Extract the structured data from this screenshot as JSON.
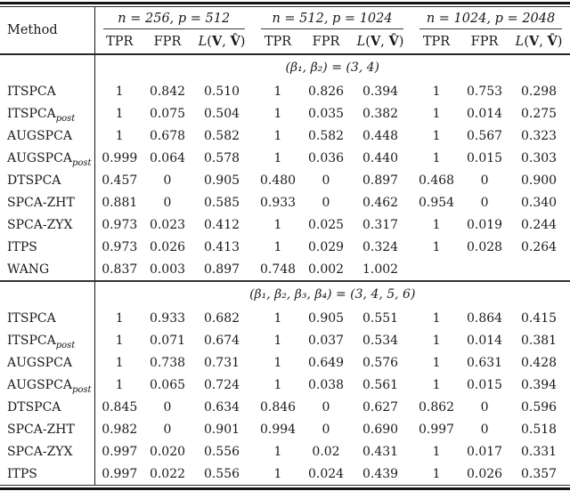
{
  "table": {
    "method_label": "Method",
    "groups": [
      {
        "label": "n = 256, p = 512"
      },
      {
        "label": "n = 512, p = 1024"
      },
      {
        "label": "n = 1024, p = 2048"
      }
    ],
    "sub_columns": {
      "tpr": "TPR",
      "fpr": "FPR",
      "loss": {
        "func": "L",
        "open": "(",
        "v": "V",
        "comma": ", ",
        "vhat": "V̂",
        "close": ")"
      }
    },
    "sections": [
      {
        "header": "(β₁, β₂) = (3, 4)",
        "rows": [
          {
            "method": "ITSPCA",
            "subscript": "",
            "values": [
              "1",
              "0.842",
              "0.510",
              "1",
              "0.826",
              "0.394",
              "1",
              "0.753",
              "0.298"
            ]
          },
          {
            "method": "ITSPCA",
            "subscript": "post",
            "values": [
              "1",
              "0.075",
              "0.504",
              "1",
              "0.035",
              "0.382",
              "1",
              "0.014",
              "0.275"
            ]
          },
          {
            "method": "AUGSPCA",
            "subscript": "",
            "values": [
              "1",
              "0.678",
              "0.582",
              "1",
              "0.582",
              "0.448",
              "1",
              "0.567",
              "0.323"
            ]
          },
          {
            "method": "AUGSPCA",
            "subscript": "post",
            "values": [
              "0.999",
              "0.064",
              "0.578",
              "1",
              "0.036",
              "0.440",
              "1",
              "0.015",
              "0.303"
            ]
          },
          {
            "method": "DTSPCA",
            "subscript": "",
            "values": [
              "0.457",
              "0",
              "0.905",
              "0.480",
              "0",
              "0.897",
              "0.468",
              "0",
              "0.900"
            ]
          },
          {
            "method": "SPCA-ZHT",
            "subscript": "",
            "values": [
              "0.881",
              "0",
              "0.585",
              "0.933",
              "0",
              "0.462",
              "0.954",
              "0",
              "0.340"
            ]
          },
          {
            "method": "SPCA-ZYX",
            "subscript": "",
            "values": [
              "0.973",
              "0.023",
              "0.412",
              "1",
              "0.025",
              "0.317",
              "1",
              "0.019",
              "0.244"
            ]
          },
          {
            "method": "ITPS",
            "subscript": "",
            "values": [
              "0.973",
              "0.026",
              "0.413",
              "1",
              "0.029",
              "0.324",
              "1",
              "0.028",
              "0.264"
            ]
          },
          {
            "method": "WANG",
            "subscript": "",
            "values": [
              "0.837",
              "0.003",
              "0.897",
              "0.748",
              "0.002",
              "1.002",
              "",
              "",
              ""
            ]
          }
        ]
      },
      {
        "header": "(β₁, β₂, β₃, β₄) = (3, 4, 5, 6)",
        "rows": [
          {
            "method": "ITSPCA",
            "subscript": "",
            "values": [
              "1",
              "0.933",
              "0.682",
              "1",
              "0.905",
              "0.551",
              "1",
              "0.864",
              "0.415"
            ]
          },
          {
            "method": "ITSPCA",
            "subscript": "post",
            "values": [
              "1",
              "0.071",
              "0.674",
              "1",
              "0.037",
              "0.534",
              "1",
              "0.014",
              "0.381"
            ]
          },
          {
            "method": "AUGSPCA",
            "subscript": "",
            "values": [
              "1",
              "0.738",
              "0.731",
              "1",
              "0.649",
              "0.576",
              "1",
              "0.631",
              "0.428"
            ]
          },
          {
            "method": "AUGSPCA",
            "subscript": "post",
            "values": [
              "1",
              "0.065",
              "0.724",
              "1",
              "0.038",
              "0.561",
              "1",
              "0.015",
              "0.394"
            ]
          },
          {
            "method": "DTSPCA",
            "subscript": "",
            "values": [
              "0.845",
              "0",
              "0.634",
              "0.846",
              "0",
              "0.627",
              "0.862",
              "0",
              "0.596"
            ]
          },
          {
            "method": "SPCA-ZHT",
            "subscript": "",
            "values": [
              "0.982",
              "0",
              "0.901",
              "0.994",
              "0",
              "0.690",
              "0.997",
              "0",
              "0.518"
            ]
          },
          {
            "method": "SPCA-ZYX",
            "subscript": "",
            "values": [
              "0.997",
              "0.020",
              "0.556",
              "1",
              "0.02",
              "0.431",
              "1",
              "0.017",
              "0.331"
            ]
          },
          {
            "method": "ITPS",
            "subscript": "",
            "values": [
              "0.997",
              "0.022",
              "0.556",
              "1",
              "0.024",
              "0.439",
              "1",
              "0.026",
              "0.357"
            ]
          }
        ]
      }
    ]
  }
}
